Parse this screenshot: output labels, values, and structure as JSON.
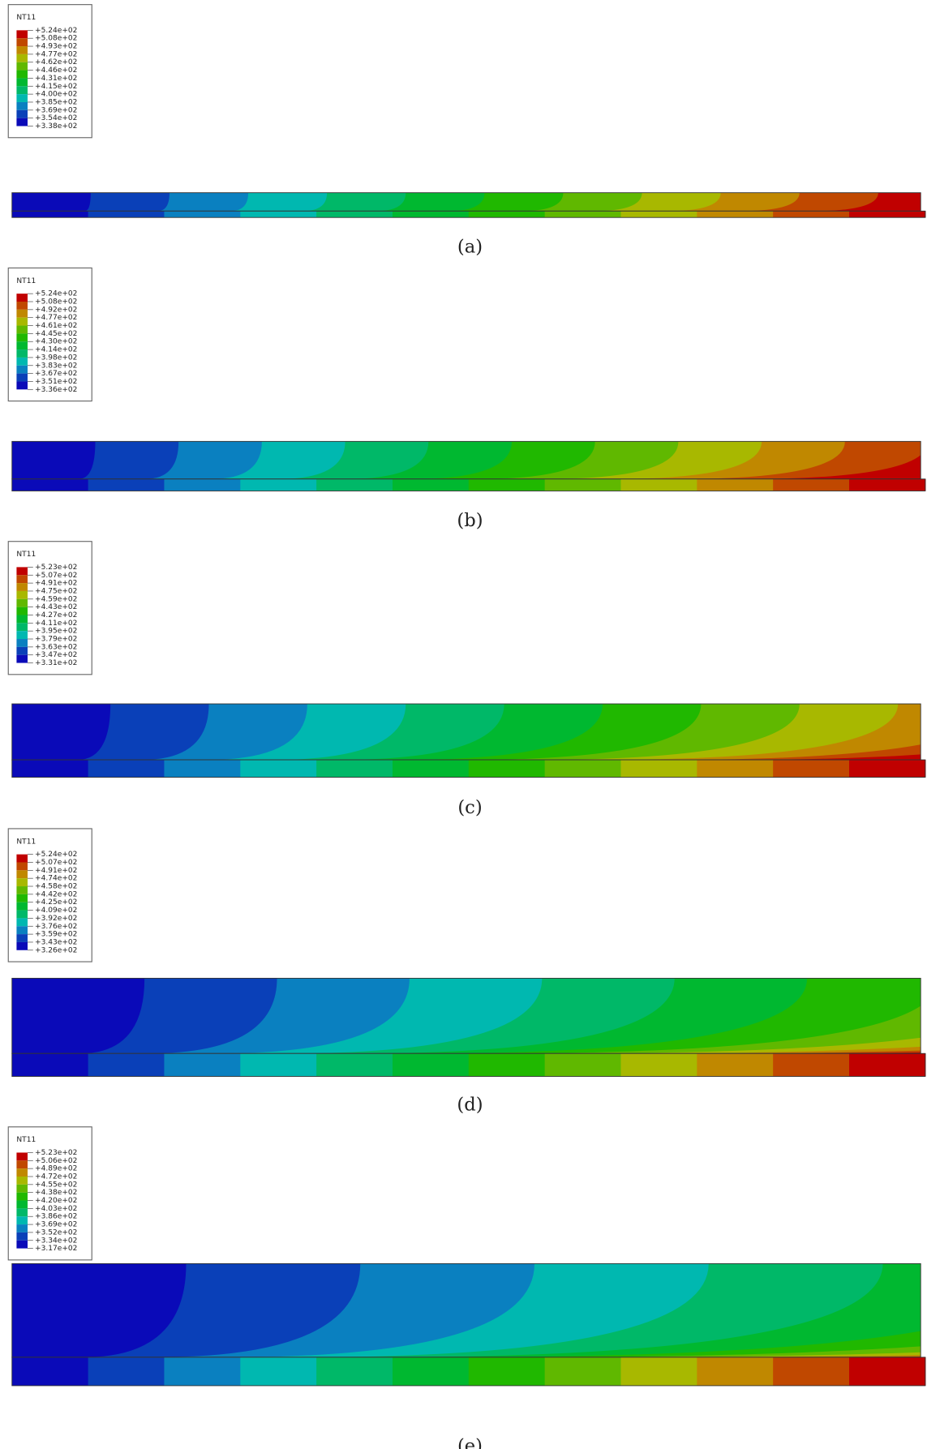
{
  "legend_colors": [
    "#0a0ab8",
    "#0a40b8",
    "#0a80c0",
    "#00b8b0",
    "#00b868",
    "#00b830",
    "#20b800",
    "#60b800",
    "#a8b800",
    "#c08800",
    "#c04800",
    "#c00000"
  ],
  "panels": [
    {
      "legend_title": "NT11",
      "caption": "(a)",
      "legend_labels": [
        "+5.24e+02",
        "+5.08e+02",
        "+4.93e+02",
        "+4.77e+02",
        "+4.62e+02",
        "+4.46e+02",
        "+4.31e+02",
        "+4.15e+02",
        "+4.00e+02",
        "+3.85e+02",
        "+3.69e+02",
        "+3.54e+02",
        "+3.38e+02"
      ]
    },
    {
      "legend_title": "NT11",
      "caption": "(b)",
      "legend_labels": [
        "+5.24e+02",
        "+5.08e+02",
        "+4.92e+02",
        "+4.77e+02",
        "+4.61e+02",
        "+4.45e+02",
        "+4.30e+02",
        "+4.14e+02",
        "+3.98e+02",
        "+3.83e+02",
        "+3.67e+02",
        "+3.51e+02",
        "+3.36e+02"
      ]
    },
    {
      "legend_title": "NT11",
      "caption": "(c)",
      "legend_labels": [
        "+5.23e+02",
        "+5.07e+02",
        "+4.91e+02",
        "+4.75e+02",
        "+4.59e+02",
        "+4.43e+02",
        "+4.27e+02",
        "+4.11e+02",
        "+3.95e+02",
        "+3.79e+02",
        "+3.63e+02",
        "+3.47e+02",
        "+3.31e+02"
      ]
    },
    {
      "legend_title": "NT11",
      "caption": "(d)",
      "legend_labels": [
        "+5.24e+02",
        "+5.07e+02",
        "+4.91e+02",
        "+4.74e+02",
        "+4.58e+02",
        "+4.42e+02",
        "+4.25e+02",
        "+4.09e+02",
        "+3.92e+02",
        "+3.76e+02",
        "+3.59e+02",
        "+3.43e+02",
        "+3.26e+02"
      ]
    },
    {
      "legend_title": "NT11",
      "caption": "(e)",
      "legend_labels": [
        "+5.23e+02",
        "+5.06e+02",
        "+4.89e+02",
        "+4.72e+02",
        "+4.55e+02",
        "+4.38e+02",
        "+4.20e+02",
        "+4.03e+02",
        "+3.86e+02",
        "+3.69e+02",
        "+3.52e+02",
        "+3.34e+02",
        "+3.17e+02"
      ]
    }
  ]
}
